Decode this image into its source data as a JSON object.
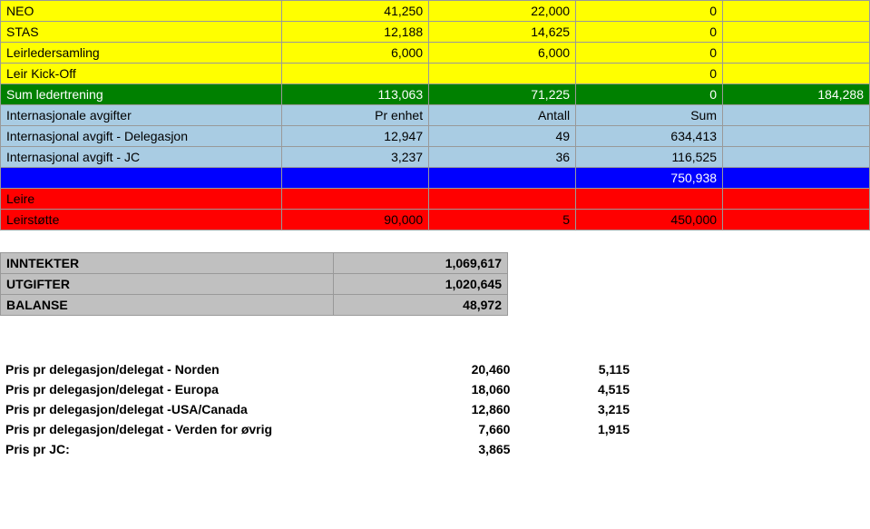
{
  "rows_top": [
    {
      "bg": "bg-yellow",
      "label": "NEO",
      "c1": "41,250",
      "c2": "22,000",
      "c3": "0",
      "c4": ""
    },
    {
      "bg": "bg-yellow",
      "label": "STAS",
      "c1": "12,188",
      "c2": "14,625",
      "c3": "0",
      "c4": ""
    },
    {
      "bg": "bg-yellow",
      "label": "Leirledersamling",
      "c1": "6,000",
      "c2": "6,000",
      "c3": "0",
      "c4": ""
    },
    {
      "bg": "bg-yellow",
      "label": "Leir Kick-Off",
      "c1": "",
      "c2": "",
      "c3": "0",
      "c4": ""
    },
    {
      "bg": "bg-green",
      "label": "Sum ledertrening",
      "c1": "113,063",
      "c2": "71,225",
      "c3": "0",
      "c4": "184,288"
    },
    {
      "bg": "bg-lblue",
      "label": "Internasjonale avgifter",
      "c1": "Pr enhet",
      "c2": "Antall",
      "c3": "Sum",
      "c4": ""
    },
    {
      "bg": "bg-lblue",
      "label": "Internasjonal avgift - Delegasjon",
      "c1": "12,947",
      "c2": "49",
      "c3": "634,413",
      "c4": ""
    },
    {
      "bg": "bg-lblue",
      "label": "Internasjonal avgift - JC",
      "c1": "3,237",
      "c2": "36",
      "c3": "116,525",
      "c4": ""
    },
    {
      "bg": "bg-blue",
      "label": "",
      "c1": "",
      "c2": "",
      "c3": "750,938",
      "c4": ""
    },
    {
      "bg": "bg-red",
      "label": "Leire",
      "c1": "",
      "c2": "",
      "c3": "",
      "c4": ""
    },
    {
      "bg": "bg-red",
      "label": "Leirstøtte",
      "c1": "90,000",
      "c2": "5",
      "c3": "450,000",
      "c4": ""
    }
  ],
  "summary": [
    {
      "label": "INNTEKTER",
      "value": "1,069,617"
    },
    {
      "label": "UTGIFTER",
      "value": "1,020,645"
    },
    {
      "label": "BALANSE",
      "value": "48,972"
    }
  ],
  "price_header": "",
  "prices": [
    {
      "label": "Pris pr delegasjon/delegat - Norden",
      "c1": "20,460",
      "c2": "5,115"
    },
    {
      "label": "Pris pr delegasjon/delegat - Europa",
      "c1": "18,060",
      "c2": "4,515"
    },
    {
      "label": "Pris pr delegasjon/delegat -USA/Canada",
      "c1": "12,860",
      "c2": "3,215"
    },
    {
      "label": "Pris pr delegasjon/delegat - Verden for øvrig",
      "c1": "7,660",
      "c2": "1,915"
    },
    {
      "label": "Pris pr JC:",
      "c1": "3,865",
      "c2": ""
    }
  ]
}
